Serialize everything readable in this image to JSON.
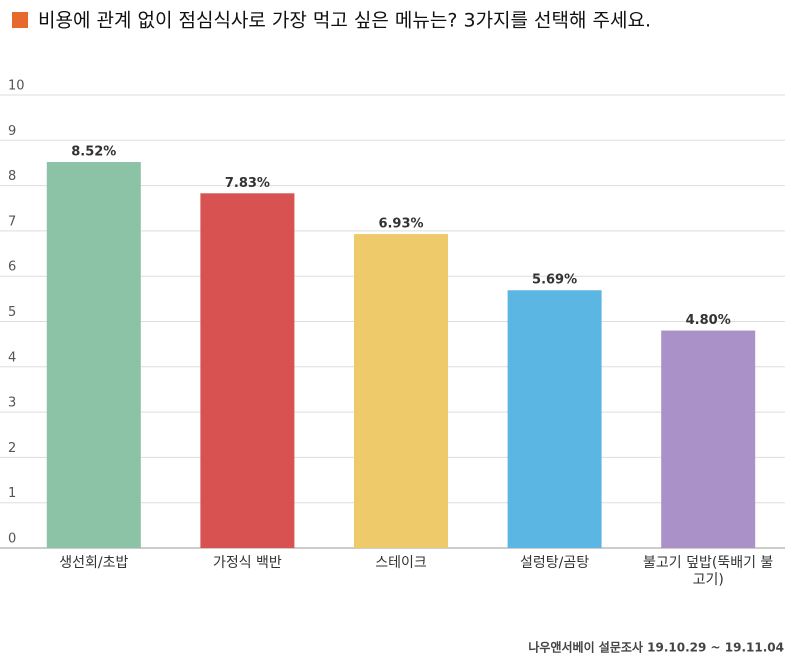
{
  "chart_data": {
    "type": "bar",
    "title": "비용에 관계 없이 점심식사로 가장 먹고 싶은 메뉴는?  3가지를 선택해 주세요.",
    "categories": [
      "생선회/초밥",
      "가정식 백반",
      "스테이크",
      "설렁탕/곰탕",
      "불고기 덮밥(뚝배기 불고기)"
    ],
    "values": [
      8.52,
      7.83,
      6.93,
      5.69,
      4.8
    ],
    "value_labels": [
      "8.52%",
      "7.83%",
      "6.93%",
      "5.69%",
      "4.80%"
    ],
    "colors": [
      "#8cc2a6",
      "#d95252",
      "#efca6b",
      "#5cb6e4",
      "#aa91c8"
    ],
    "title_marker_color": "#e8692e",
    "ylim": [
      0,
      10
    ],
    "yticks": [
      0,
      1,
      2,
      3,
      4,
      5,
      6,
      7,
      8,
      9,
      10
    ],
    "grid": true,
    "source": "나우앤서베이 설문조사 19.10.29 ~ 19.11.04"
  }
}
